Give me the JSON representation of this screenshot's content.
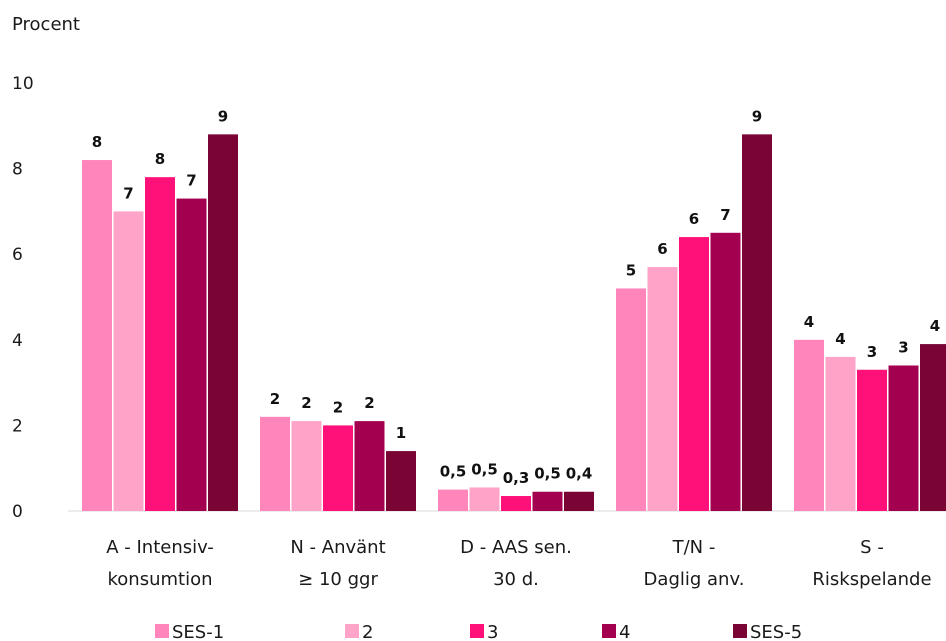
{
  "chart_data": {
    "type": "bar",
    "ylabel": "Procent",
    "ylim": [
      0,
      10
    ],
    "yticks": [
      "0",
      "2",
      "4",
      "6",
      "8",
      "10"
    ],
    "grid": false,
    "legend_position": "bottom",
    "categories": [
      [
        "A - Intensiv-",
        "konsumtion"
      ],
      [
        "N - Använt",
        "≥ 10 ggr"
      ],
      [
        "D - AAS sen.",
        "30 d."
      ],
      [
        "T/N -",
        "Daglig anv."
      ],
      [
        "S -",
        "Riskspelande"
      ]
    ],
    "series": [
      {
        "name": "SES-1",
        "color": "#ff85bb",
        "values": [
          8.2,
          2.2,
          0.5,
          5.2,
          4.0
        ],
        "labels": [
          "8",
          "2",
          "0,5",
          "5",
          "4"
        ]
      },
      {
        "name": "2",
        "color": "#ffa3c8",
        "values": [
          7.0,
          2.1,
          0.55,
          5.7,
          3.6
        ],
        "labels": [
          "7",
          "2",
          "0,5",
          "6",
          "4"
        ]
      },
      {
        "name": "3",
        "color": "#ff1179",
        "values": [
          7.8,
          2.0,
          0.35,
          6.4,
          3.3
        ],
        "labels": [
          "8",
          "2",
          "0,3",
          "6",
          "3"
        ]
      },
      {
        "name": "4",
        "color": "#a3004f",
        "values": [
          7.3,
          2.1,
          0.45,
          6.5,
          3.4
        ],
        "labels": [
          "7",
          "2",
          "0,5",
          "7",
          "3"
        ]
      },
      {
        "name": "SES-5",
        "color": "#7a0535",
        "values": [
          8.8,
          1.4,
          0.45,
          8.8,
          3.9
        ],
        "labels": [
          "9",
          "1",
          "0,4",
          "9",
          "4"
        ]
      }
    ]
  }
}
